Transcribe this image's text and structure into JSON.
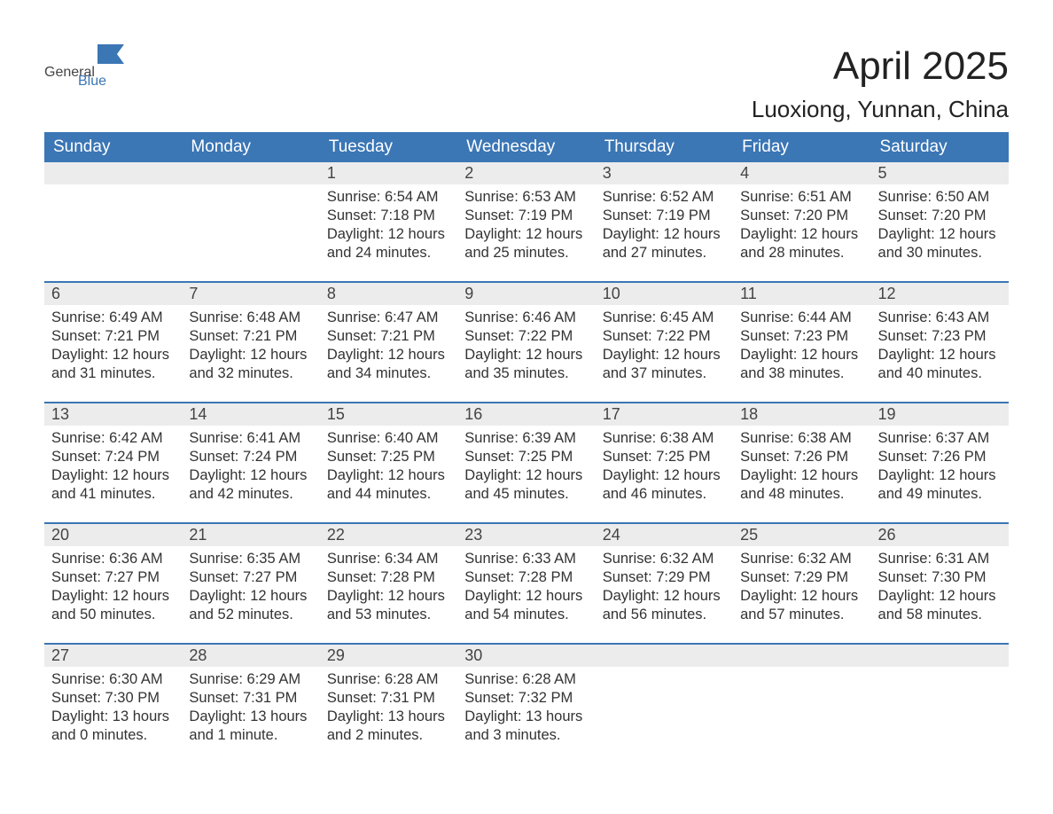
{
  "logo": {
    "text_general": "General",
    "text_blue": "Blue",
    "flag_color": "#3b76b5"
  },
  "title": "April 2025",
  "location": "Luoxiong, Yunnan, China",
  "colors": {
    "header_bg": "#3b76b5",
    "header_text": "#ffffff",
    "daynum_bg": "#ececec",
    "week_border": "#3b76b5",
    "body_text": "#333333",
    "page_bg": "#ffffff"
  },
  "typography": {
    "title_fontsize": 44,
    "location_fontsize": 26,
    "weekday_fontsize": 19,
    "daynum_fontsize": 18,
    "body_fontsize": 16.5,
    "logo_fontsize": 34
  },
  "weekdays": [
    "Sunday",
    "Monday",
    "Tuesday",
    "Wednesday",
    "Thursday",
    "Friday",
    "Saturday"
  ],
  "weeks": [
    [
      {
        "day": "",
        "sunrise": "",
        "sunset": "",
        "daylight": ""
      },
      {
        "day": "",
        "sunrise": "",
        "sunset": "",
        "daylight": ""
      },
      {
        "day": "1",
        "sunrise": "Sunrise: 6:54 AM",
        "sunset": "Sunset: 7:18 PM",
        "daylight": "Daylight: 12 hours and 24 minutes."
      },
      {
        "day": "2",
        "sunrise": "Sunrise: 6:53 AM",
        "sunset": "Sunset: 7:19 PM",
        "daylight": "Daylight: 12 hours and 25 minutes."
      },
      {
        "day": "3",
        "sunrise": "Sunrise: 6:52 AM",
        "sunset": "Sunset: 7:19 PM",
        "daylight": "Daylight: 12 hours and 27 minutes."
      },
      {
        "day": "4",
        "sunrise": "Sunrise: 6:51 AM",
        "sunset": "Sunset: 7:20 PM",
        "daylight": "Daylight: 12 hours and 28 minutes."
      },
      {
        "day": "5",
        "sunrise": "Sunrise: 6:50 AM",
        "sunset": "Sunset: 7:20 PM",
        "daylight": "Daylight: 12 hours and 30 minutes."
      }
    ],
    [
      {
        "day": "6",
        "sunrise": "Sunrise: 6:49 AM",
        "sunset": "Sunset: 7:21 PM",
        "daylight": "Daylight: 12 hours and 31 minutes."
      },
      {
        "day": "7",
        "sunrise": "Sunrise: 6:48 AM",
        "sunset": "Sunset: 7:21 PM",
        "daylight": "Daylight: 12 hours and 32 minutes."
      },
      {
        "day": "8",
        "sunrise": "Sunrise: 6:47 AM",
        "sunset": "Sunset: 7:21 PM",
        "daylight": "Daylight: 12 hours and 34 minutes."
      },
      {
        "day": "9",
        "sunrise": "Sunrise: 6:46 AM",
        "sunset": "Sunset: 7:22 PM",
        "daylight": "Daylight: 12 hours and 35 minutes."
      },
      {
        "day": "10",
        "sunrise": "Sunrise: 6:45 AM",
        "sunset": "Sunset: 7:22 PM",
        "daylight": "Daylight: 12 hours and 37 minutes."
      },
      {
        "day": "11",
        "sunrise": "Sunrise: 6:44 AM",
        "sunset": "Sunset: 7:23 PM",
        "daylight": "Daylight: 12 hours and 38 minutes."
      },
      {
        "day": "12",
        "sunrise": "Sunrise: 6:43 AM",
        "sunset": "Sunset: 7:23 PM",
        "daylight": "Daylight: 12 hours and 40 minutes."
      }
    ],
    [
      {
        "day": "13",
        "sunrise": "Sunrise: 6:42 AM",
        "sunset": "Sunset: 7:24 PM",
        "daylight": "Daylight: 12 hours and 41 minutes."
      },
      {
        "day": "14",
        "sunrise": "Sunrise: 6:41 AM",
        "sunset": "Sunset: 7:24 PM",
        "daylight": "Daylight: 12 hours and 42 minutes."
      },
      {
        "day": "15",
        "sunrise": "Sunrise: 6:40 AM",
        "sunset": "Sunset: 7:25 PM",
        "daylight": "Daylight: 12 hours and 44 minutes."
      },
      {
        "day": "16",
        "sunrise": "Sunrise: 6:39 AM",
        "sunset": "Sunset: 7:25 PM",
        "daylight": "Daylight: 12 hours and 45 minutes."
      },
      {
        "day": "17",
        "sunrise": "Sunrise: 6:38 AM",
        "sunset": "Sunset: 7:25 PM",
        "daylight": "Daylight: 12 hours and 46 minutes."
      },
      {
        "day": "18",
        "sunrise": "Sunrise: 6:38 AM",
        "sunset": "Sunset: 7:26 PM",
        "daylight": "Daylight: 12 hours and 48 minutes."
      },
      {
        "day": "19",
        "sunrise": "Sunrise: 6:37 AM",
        "sunset": "Sunset: 7:26 PM",
        "daylight": "Daylight: 12 hours and 49 minutes."
      }
    ],
    [
      {
        "day": "20",
        "sunrise": "Sunrise: 6:36 AM",
        "sunset": "Sunset: 7:27 PM",
        "daylight": "Daylight: 12 hours and 50 minutes."
      },
      {
        "day": "21",
        "sunrise": "Sunrise: 6:35 AM",
        "sunset": "Sunset: 7:27 PM",
        "daylight": "Daylight: 12 hours and 52 minutes."
      },
      {
        "day": "22",
        "sunrise": "Sunrise: 6:34 AM",
        "sunset": "Sunset: 7:28 PM",
        "daylight": "Daylight: 12 hours and 53 minutes."
      },
      {
        "day": "23",
        "sunrise": "Sunrise: 6:33 AM",
        "sunset": "Sunset: 7:28 PM",
        "daylight": "Daylight: 12 hours and 54 minutes."
      },
      {
        "day": "24",
        "sunrise": "Sunrise: 6:32 AM",
        "sunset": "Sunset: 7:29 PM",
        "daylight": "Daylight: 12 hours and 56 minutes."
      },
      {
        "day": "25",
        "sunrise": "Sunrise: 6:32 AM",
        "sunset": "Sunset: 7:29 PM",
        "daylight": "Daylight: 12 hours and 57 minutes."
      },
      {
        "day": "26",
        "sunrise": "Sunrise: 6:31 AM",
        "sunset": "Sunset: 7:30 PM",
        "daylight": "Daylight: 12 hours and 58 minutes."
      }
    ],
    [
      {
        "day": "27",
        "sunrise": "Sunrise: 6:30 AM",
        "sunset": "Sunset: 7:30 PM",
        "daylight": "Daylight: 13 hours and 0 minutes."
      },
      {
        "day": "28",
        "sunrise": "Sunrise: 6:29 AM",
        "sunset": "Sunset: 7:31 PM",
        "daylight": "Daylight: 13 hours and 1 minute."
      },
      {
        "day": "29",
        "sunrise": "Sunrise: 6:28 AM",
        "sunset": "Sunset: 7:31 PM",
        "daylight": "Daylight: 13 hours and 2 minutes."
      },
      {
        "day": "30",
        "sunrise": "Sunrise: 6:28 AM",
        "sunset": "Sunset: 7:32 PM",
        "daylight": "Daylight: 13 hours and 3 minutes."
      },
      {
        "day": "",
        "sunrise": "",
        "sunset": "",
        "daylight": ""
      },
      {
        "day": "",
        "sunrise": "",
        "sunset": "",
        "daylight": ""
      },
      {
        "day": "",
        "sunrise": "",
        "sunset": "",
        "daylight": ""
      }
    ]
  ]
}
